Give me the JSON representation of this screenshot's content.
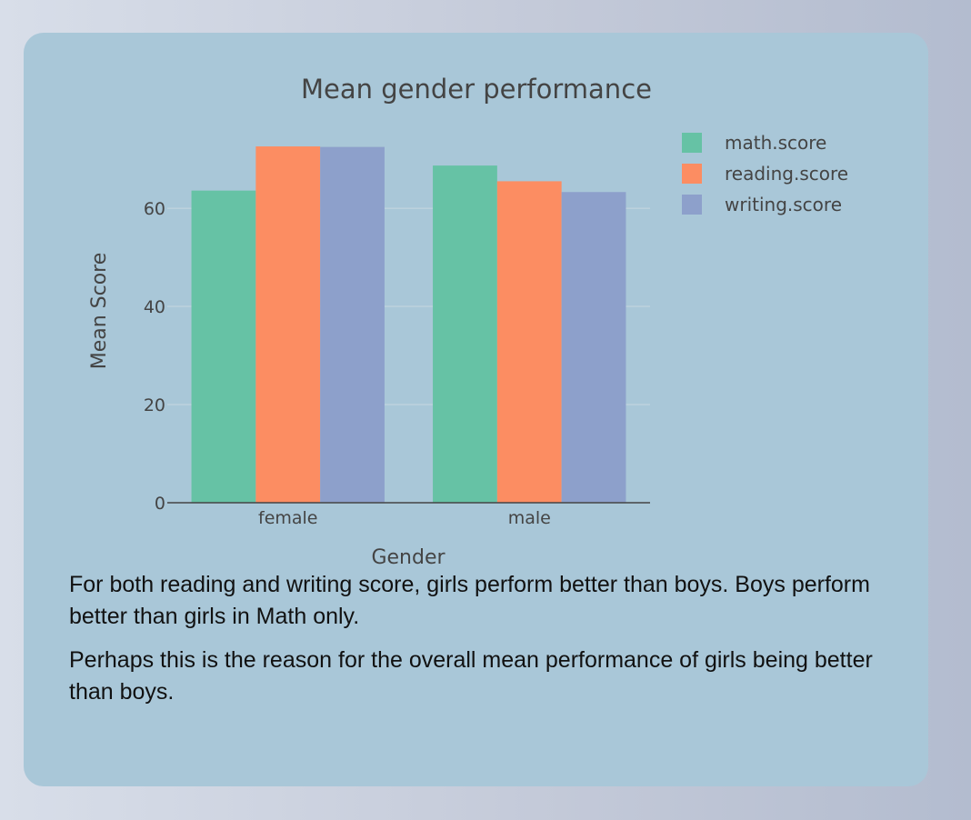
{
  "chart_data": {
    "type": "bar",
    "title": "Mean gender performance",
    "xlabel": "Gender",
    "ylabel": "Mean Score",
    "categories": [
      "female",
      "male"
    ],
    "series": [
      {
        "name": "math.score",
        "color": "#66c2a5",
        "values": [
          63.6,
          68.7
        ]
      },
      {
        "name": "reading.score",
        "color": "#fc8d62",
        "values": [
          72.6,
          65.5
        ]
      },
      {
        "name": "writing.score",
        "color": "#8da0cb",
        "values": [
          72.5,
          63.3
        ]
      }
    ],
    "yticks": [
      0,
      20,
      40,
      60
    ],
    "ylim": [
      0,
      76.5
    ],
    "grid": true,
    "legend": "top-right"
  },
  "text": {
    "paragraph1": "For both reading and writing score, girls perform better than boys. Boys perform better than girls in Math only.",
    "paragraph2": "Perhaps this is the reason for the overall mean performance of girls being better than boys."
  }
}
